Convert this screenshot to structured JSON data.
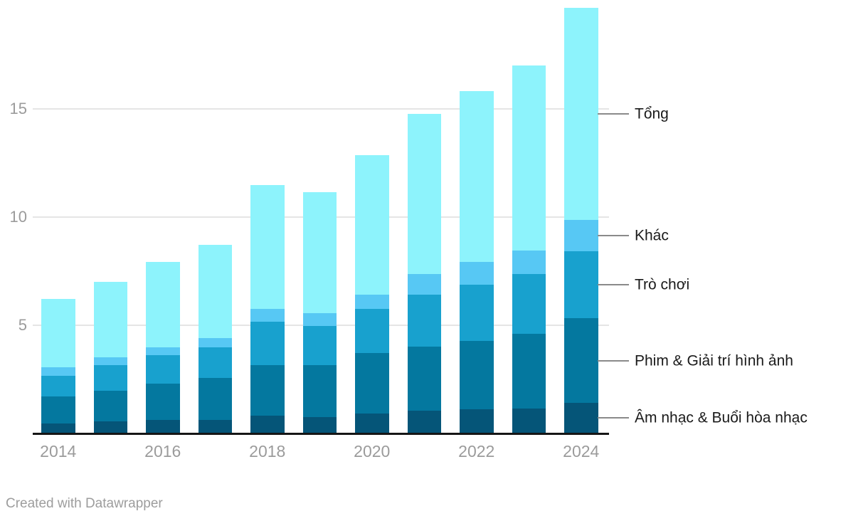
{
  "chart_data": {
    "type": "bar",
    "stacked": true,
    "title": "",
    "xlabel": "",
    "ylabel": "",
    "categories": [
      "2014",
      "2015",
      "2016",
      "2017",
      "2018",
      "2019",
      "2020",
      "2021",
      "2022",
      "2023",
      "2024"
    ],
    "series": [
      {
        "key": "am-nhac",
        "name": "Âm nhạc & Buổi hòa nhạc",
        "color": "#055578",
        "values": [
          0.45,
          0.55,
          0.6,
          0.6,
          0.8,
          0.75,
          0.9,
          1.05,
          1.1,
          1.15,
          1.4
        ]
      },
      {
        "key": "phim",
        "name": "Phim & Giải trí hình ảnh",
        "color": "#04789f",
        "values": [
          1.25,
          1.4,
          1.7,
          1.95,
          2.35,
          2.4,
          2.8,
          2.95,
          3.15,
          3.45,
          3.9
        ]
      },
      {
        "key": "tro-choi",
        "name": "Trò chơi",
        "color": "#18a1ce",
        "values": [
          0.95,
          1.2,
          1.3,
          1.4,
          2.0,
          1.8,
          2.05,
          2.4,
          2.6,
          2.75,
          3.1
        ]
      },
      {
        "key": "khac",
        "name": "Khác",
        "color": "#57c8f4",
        "values": [
          0.4,
          0.35,
          0.35,
          0.45,
          0.6,
          0.6,
          0.65,
          0.95,
          1.05,
          1.1,
          1.45
        ]
      },
      {
        "key": "tong",
        "name": "Tổng",
        "color": "#8df3fc",
        "role": "total",
        "values": [
          6.2,
          7.0,
          7.9,
          8.7,
          11.45,
          11.15,
          12.85,
          14.75,
          15.8,
          17.0,
          19.65
        ]
      }
    ],
    "legend_order": [
      "tong",
      "khac",
      "tro-choi",
      "phim",
      "am-nhac"
    ],
    "legend_position": "right",
    "yticks": [
      5,
      10,
      15
    ],
    "ylim": [
      0,
      20
    ],
    "x_tick_labels": [
      "2014",
      "2016",
      "2018",
      "2020",
      "2022",
      "2024"
    ],
    "grid": "horizontal"
  },
  "footer": {
    "credit": "Created with Datawrapper"
  }
}
